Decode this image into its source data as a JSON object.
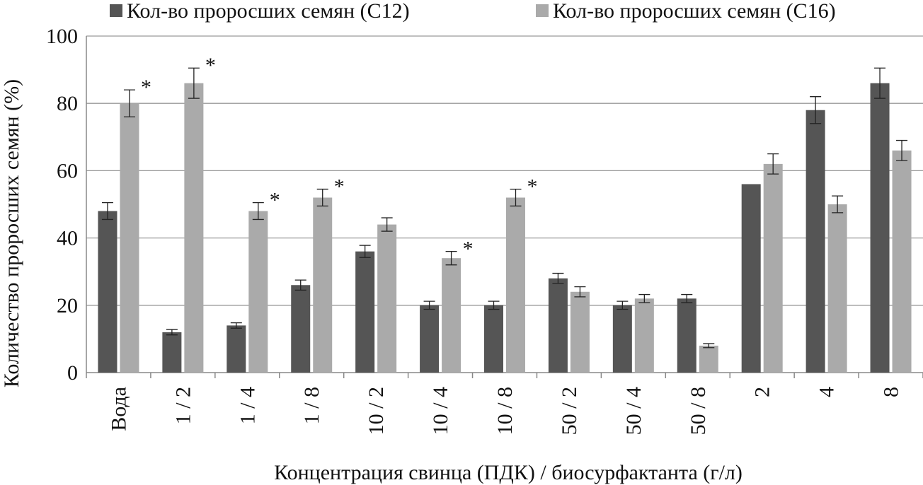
{
  "chart_data": {
    "type": "bar",
    "categories": [
      "Вода",
      "1 / 2",
      "1 / 4",
      "1 / 8",
      "10 / 2",
      "10 / 4",
      "10 / 8",
      "50 / 2",
      "50 / 4",
      "50 / 8",
      "2",
      "4",
      "8"
    ],
    "series": [
      {
        "name": "Кол-во проросших семян (С12)",
        "color": "#555555",
        "values": [
          48,
          12,
          14,
          26,
          36,
          20,
          20,
          28,
          20,
          22,
          56,
          78,
          86
        ],
        "errors": [
          2.5,
          0.8,
          0.8,
          1.5,
          1.8,
          1.2,
          1.2,
          1.5,
          1.2,
          1.2,
          0,
          4,
          4.5
        ]
      },
      {
        "name": "Кол-во проросших семян (С16)",
        "color": "#aaaaaa",
        "values": [
          80,
          86,
          48,
          52,
          44,
          34,
          52,
          24,
          22,
          8,
          62,
          50,
          66
        ],
        "errors": [
          4,
          4.5,
          2.5,
          2.5,
          2,
          2,
          2.5,
          1.5,
          1.2,
          0.6,
          3,
          2.5,
          3
        ]
      }
    ],
    "significance_marks": [
      "*",
      "*",
      "*",
      "*",
      "",
      "*",
      "*",
      "",
      "",
      "",
      "",
      "",
      ""
    ],
    "xlabel": "Концентрация свинца (ПДК) / биосурфактанта (г/л)",
    "ylabel": "Количество проросших семян (%)",
    "ylim": [
      0,
      100
    ],
    "yticks": [
      "0",
      "20",
      "40",
      "60",
      "80",
      "100"
    ],
    "grid": true,
    "legend_position": "top"
  }
}
